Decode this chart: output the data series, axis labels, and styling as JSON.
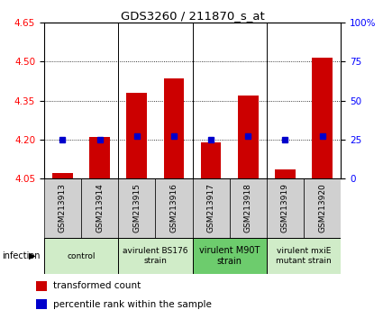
{
  "title": "GDS3260 / 211870_s_at",
  "samples": [
    "GSM213913",
    "GSM213914",
    "GSM213915",
    "GSM213916",
    "GSM213917",
    "GSM213918",
    "GSM213919",
    "GSM213920"
  ],
  "transformed_counts": [
    4.07,
    4.21,
    4.38,
    4.435,
    4.19,
    4.37,
    4.085,
    4.515
  ],
  "percentile_ranks": [
    25,
    25,
    27,
    27,
    25,
    27,
    25,
    27
  ],
  "ylim_left": [
    4.05,
    4.65
  ],
  "ylim_right": [
    0,
    100
  ],
  "yticks_left": [
    4.05,
    4.2,
    4.35,
    4.5,
    4.65
  ],
  "yticks_right": [
    0,
    25,
    50,
    75,
    100
  ],
  "bar_color": "#cc0000",
  "dot_color": "#0000cc",
  "bar_width": 0.55,
  "group_positions": [
    {
      "start": 0,
      "end": 1,
      "label": "control",
      "color": "#d0ecc8"
    },
    {
      "start": 2,
      "end": 3,
      "label": "avirulent BS176\nstrain",
      "color": "#d0ecc8"
    },
    {
      "start": 4,
      "end": 5,
      "label": "virulent M90T\nstrain",
      "color": "#6dcc6d"
    },
    {
      "start": 6,
      "end": 7,
      "label": "virulent mxiE\nmutant strain",
      "color": "#d0ecc8"
    }
  ],
  "infection_label": "infection",
  "legend_bar_label": "transformed count",
  "legend_dot_label": "percentile rank within the sample",
  "sample_box_color": "#d0d0d0",
  "grid_lines": [
    4.2,
    4.35,
    4.5
  ],
  "group_dividers": [
    1.5,
    3.5,
    5.5
  ]
}
